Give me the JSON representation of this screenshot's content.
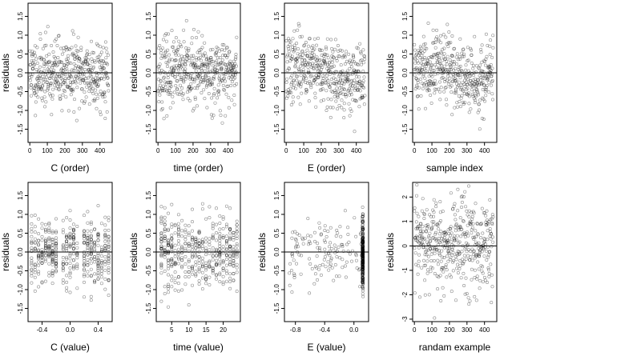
{
  "figure": {
    "background": "#ffffff",
    "point_color": "#000000",
    "point_opacity": 0.45,
    "zero_line_color": "#000000"
  },
  "chart_data": [
    {
      "id": "p1",
      "type": "scatter",
      "xlabel": "C (order)",
      "ylabel": "residuals",
      "xlim": [
        -10,
        470
      ],
      "ylim": [
        -1.85,
        1.85
      ],
      "xticks": [
        0,
        100,
        200,
        300,
        400
      ],
      "xticklabels": [
        "0",
        "100",
        "200",
        "300",
        "400"
      ],
      "yticks": [
        -1.5,
        -1.0,
        -0.5,
        0.0,
        0.5,
        1.0,
        1.5
      ],
      "yticklabels": [
        "-1.5",
        "-1.0",
        "-0.5",
        "0.0",
        "0.5",
        "1.0",
        "1.5"
      ],
      "hline": 0,
      "n_points": 450,
      "pattern": "index",
      "spread": 0.45,
      "seed": 11
    },
    {
      "id": "p2",
      "type": "scatter",
      "xlabel": "time (order)",
      "ylabel": "residuals",
      "xlim": [
        -10,
        470
      ],
      "ylim": [
        -1.85,
        1.85
      ],
      "xticks": [
        0,
        100,
        200,
        300,
        400
      ],
      "xticklabels": [
        "0",
        "100",
        "200",
        "300",
        "400"
      ],
      "yticks": [
        -1.5,
        -1.0,
        -0.5,
        0.0,
        0.5,
        1.0,
        1.5
      ],
      "yticklabels": [
        "-1.5",
        "-1.0",
        "-0.5",
        "0.0",
        "0.5",
        "1.0",
        "1.5"
      ],
      "hline": 0,
      "n_points": 450,
      "pattern": "index",
      "spread": 0.45,
      "seed": 23
    },
    {
      "id": "p3",
      "type": "scatter",
      "xlabel": "E (order)",
      "ylabel": "residuals",
      "xlim": [
        -10,
        470
      ],
      "ylim": [
        -1.85,
        1.85
      ],
      "xticks": [
        0,
        100,
        200,
        300,
        400
      ],
      "xticklabels": [
        "0",
        "100",
        "200",
        "300",
        "400"
      ],
      "yticks": [
        -1.5,
        -1.0,
        -0.5,
        0.0,
        0.5,
        1.0,
        1.5
      ],
      "yticklabels": [
        "-1.5",
        "-1.0",
        "-0.5",
        "0.0",
        "0.5",
        "1.0",
        "1.5"
      ],
      "hline": 0,
      "n_points": 450,
      "pattern": "wave",
      "spread": 0.45,
      "seed": 37
    },
    {
      "id": "p4",
      "type": "scatter",
      "xlabel": "sample index",
      "ylabel": "residuals",
      "xlim": [
        -10,
        470
      ],
      "ylim": [
        -1.85,
        1.85
      ],
      "xticks": [
        0,
        100,
        200,
        300,
        400
      ],
      "xticklabels": [
        "0",
        "100",
        "200",
        "300",
        "400"
      ],
      "yticks": [
        -1.5,
        -1.0,
        -0.5,
        0.0,
        0.5,
        1.0,
        1.5
      ],
      "yticklabels": [
        "-1.5",
        "-1.0",
        "-0.5",
        "0.0",
        "0.5",
        "1.0",
        "1.5"
      ],
      "hline": 0,
      "n_points": 450,
      "pattern": "wave",
      "spread": 0.45,
      "seed": 41
    },
    {
      "id": "p5",
      "type": "scatter",
      "xlabel": "C (value)",
      "ylabel": "residuals",
      "xlim": [
        -0.6,
        0.6
      ],
      "ylim": [
        -1.85,
        1.85
      ],
      "xticks": [
        -0.4,
        0,
        0.4
      ],
      "xticklabels": [
        "-0.4",
        "0.0",
        "0.4"
      ],
      "yticks": [
        -1.5,
        -1.0,
        -0.5,
        0.0,
        0.5,
        1.0,
        1.5
      ],
      "yticklabels": [
        "-1.5",
        "-1.0",
        "-0.5",
        "0.0",
        "0.5",
        "1.0",
        "1.5"
      ],
      "hline": 0,
      "n_points": 450,
      "pattern": "columns",
      "x_levels": [
        -0.55,
        -0.5,
        -0.45,
        -0.4,
        -0.35,
        -0.3,
        -0.25,
        -0.2,
        -0.1,
        -0.05,
        0.0,
        0.05,
        0.1,
        0.2,
        0.25,
        0.3,
        0.35,
        0.4,
        0.45,
        0.5,
        0.55
      ],
      "spread": 0.45,
      "seed": 53
    },
    {
      "id": "p6",
      "type": "scatter",
      "xlabel": "time (value)",
      "ylabel": "residuals",
      "xlim": [
        0.5,
        25
      ],
      "ylim": [
        -1.85,
        1.85
      ],
      "xticks": [
        5,
        10,
        15,
        20
      ],
      "xticklabels": [
        "5",
        "10",
        "15",
        "20"
      ],
      "yticks": [
        -1.5,
        -1.0,
        -0.5,
        0.0,
        0.5,
        1.0,
        1.5
      ],
      "yticklabels": [
        "-1.5",
        "-1.0",
        "-0.5",
        "0.0",
        "0.5",
        "1.0",
        "1.5"
      ],
      "hline": 0,
      "n_points": 450,
      "pattern": "columns",
      "x_levels": [
        2,
        3,
        4,
        5,
        6,
        7,
        8,
        9,
        10,
        11,
        12,
        13,
        14,
        15,
        16,
        17,
        18,
        19,
        20,
        21,
        22,
        23,
        24
      ],
      "spread": 0.45,
      "seed": 67
    },
    {
      "id": "p7",
      "type": "scatter",
      "xlabel": "E (value)",
      "ylabel": "residuals",
      "xlim": [
        -0.95,
        0.2
      ],
      "ylim": [
        -1.85,
        1.85
      ],
      "xticks": [
        -0.8,
        -0.4,
        0
      ],
      "xticklabels": [
        "-0.8",
        "-0.4",
        "0.0"
      ],
      "yticks": [
        -1.5,
        -1.0,
        -0.5,
        0.0,
        0.5,
        1.0,
        1.5
      ],
      "yticklabels": [
        "-1.5",
        "-1.0",
        "-0.5",
        "0.0",
        "0.5",
        "1.0",
        "1.5"
      ],
      "hline": 0,
      "n_points": 400,
      "pattern": "clustered",
      "cluster_x": 0.12,
      "spread": 0.45,
      "seed": 79
    },
    {
      "id": "p8",
      "type": "scatter",
      "xlabel": "randam example",
      "ylabel": "residuals",
      "xlim": [
        -10,
        470
      ],
      "ylim": [
        -3.1,
        2.6
      ],
      "xticks": [
        0,
        100,
        200,
        300,
        400
      ],
      "xticklabels": [
        "0",
        "100",
        "200",
        "300",
        "400"
      ],
      "yticks": [
        -3,
        -2,
        -1,
        0,
        1,
        2
      ],
      "yticklabels": [
        "-3",
        "-2",
        "-1",
        "0",
        "1",
        "2"
      ],
      "hline": 0,
      "n_points": 450,
      "pattern": "index",
      "spread": 1.0,
      "seed": 97
    }
  ]
}
